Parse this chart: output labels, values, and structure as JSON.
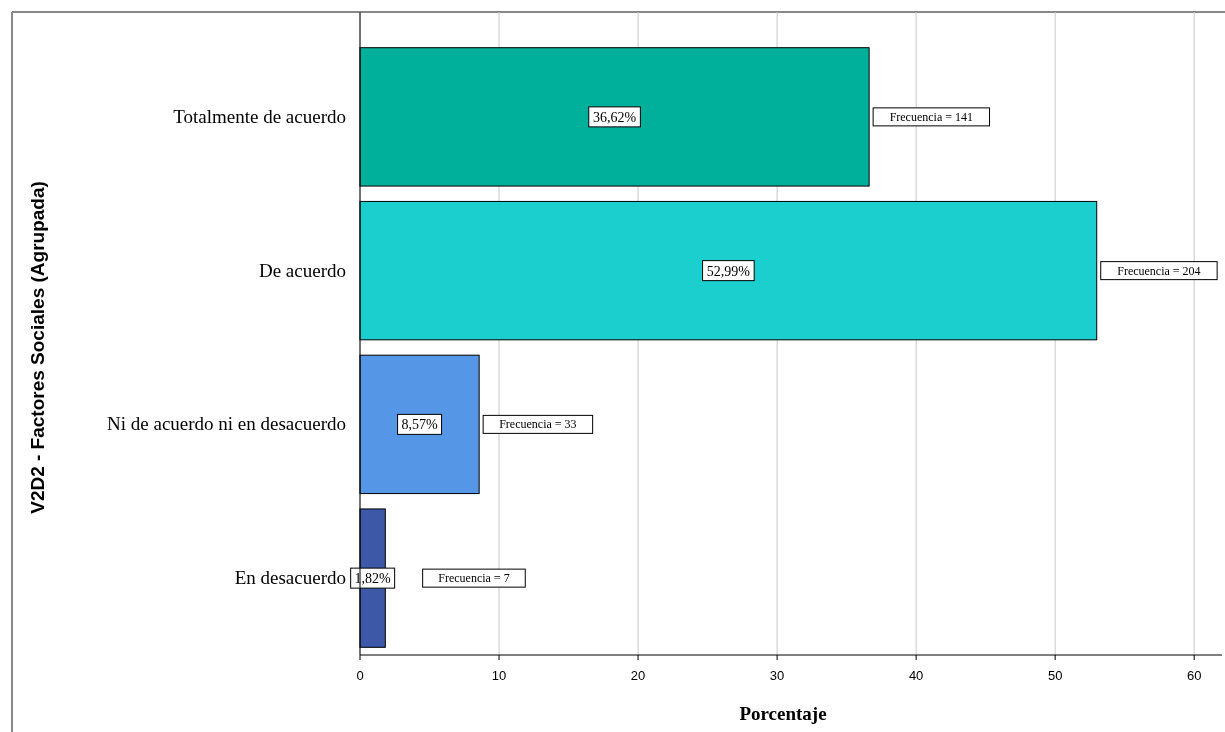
{
  "chart_data": {
    "type": "bar",
    "orientation": "horizontal",
    "xlabel": "Porcentaje",
    "ylabel": "V2D2 - Factores Sociales (Agrupada)",
    "categories": [
      "Totalmente de acuerdo",
      "De acuerdo",
      "Ni de acuerdo ni en desacuerdo",
      "En desacuerdo"
    ],
    "values": [
      36.62,
      52.99,
      8.57,
      1.82
    ],
    "colors": [
      "#00b09b",
      "#1ccfcf",
      "#5596e6",
      "#3c58a6"
    ],
    "value_labels": [
      "36,62%",
      "52,99%",
      "8,57%",
      "1,82%"
    ],
    "annotations": [
      "Frecuencia = 141",
      "Frecuencia = 204",
      "Frecuencia = 33",
      "Frecuencia = 7"
    ],
    "xlim": [
      0,
      62
    ],
    "xticks": [
      0,
      10,
      20,
      30,
      40,
      50,
      60
    ],
    "grid": "x"
  }
}
